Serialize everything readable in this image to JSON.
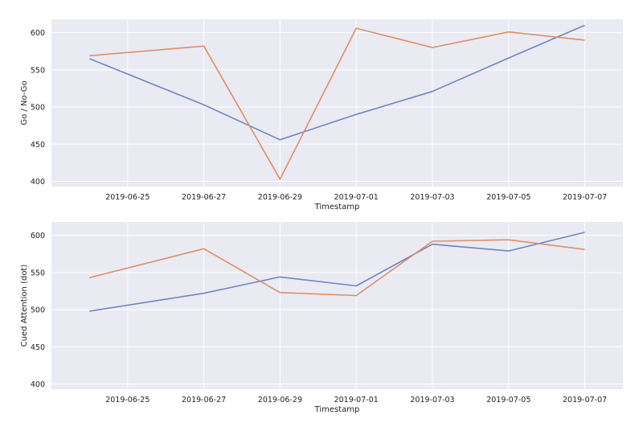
{
  "colors": {
    "background": "#eaeaf2",
    "grid": "#ffffff",
    "series_blue": "#6f86bf",
    "series_orange": "#dd8f6a"
  },
  "chart_data": [
    {
      "type": "line",
      "xlabel": "Timestamp",
      "ylabel": "Go / No-Go",
      "x_type": "date",
      "xlim": [
        "2019-06-23",
        "2019-07-08"
      ],
      "ylim": [
        393,
        618
      ],
      "grid": true,
      "x_ticks": [
        "2019-06-25",
        "2019-06-27",
        "2019-06-29",
        "2019-07-01",
        "2019-07-03",
        "2019-07-05",
        "2019-07-07"
      ],
      "y_ticks": [
        400,
        450,
        500,
        550,
        600
      ],
      "series": [
        {
          "color": "#6f86bf",
          "points": [
            [
              "2019-06-24",
              565
            ],
            [
              "2019-06-27",
              503
            ],
            [
              "2019-06-29",
              456
            ],
            [
              "2019-07-01",
              490
            ],
            [
              "2019-07-03",
              521
            ],
            [
              "2019-07-05",
              566
            ],
            [
              "2019-07-07",
              610
            ]
          ]
        },
        {
          "color": "#dd8f6a",
          "points": [
            [
              "2019-06-24",
              569
            ],
            [
              "2019-06-27",
              582
            ],
            [
              "2019-06-29",
              403
            ],
            [
              "2019-07-01",
              606
            ],
            [
              "2019-07-03",
              580
            ],
            [
              "2019-07-05",
              601
            ],
            [
              "2019-07-07",
              590
            ]
          ]
        }
      ]
    },
    {
      "type": "line",
      "xlabel": "Timestamp",
      "ylabel": "Cued Attention (dot)",
      "x_type": "date",
      "xlim": [
        "2019-06-23",
        "2019-07-08"
      ],
      "ylim": [
        393,
        618
      ],
      "grid": true,
      "x_ticks": [
        "2019-06-25",
        "2019-06-27",
        "2019-06-29",
        "2019-07-01",
        "2019-07-03",
        "2019-07-05",
        "2019-07-07"
      ],
      "y_ticks": [
        400,
        450,
        500,
        550,
        600
      ],
      "series": [
        {
          "color": "#6f86bf",
          "points": [
            [
              "2019-06-24",
              498
            ],
            [
              "2019-06-27",
              522
            ],
            [
              "2019-06-29",
              544
            ],
            [
              "2019-07-01",
              532
            ],
            [
              "2019-07-03",
              588
            ],
            [
              "2019-07-05",
              579
            ],
            [
              "2019-07-07",
              604
            ]
          ]
        },
        {
          "color": "#dd8f6a",
          "points": [
            [
              "2019-06-24",
              543
            ],
            [
              "2019-06-27",
              582
            ],
            [
              "2019-06-29",
              523
            ],
            [
              "2019-07-01",
              519
            ],
            [
              "2019-07-03",
              592
            ],
            [
              "2019-07-05",
              594
            ],
            [
              "2019-07-07",
              581
            ]
          ]
        }
      ]
    }
  ]
}
